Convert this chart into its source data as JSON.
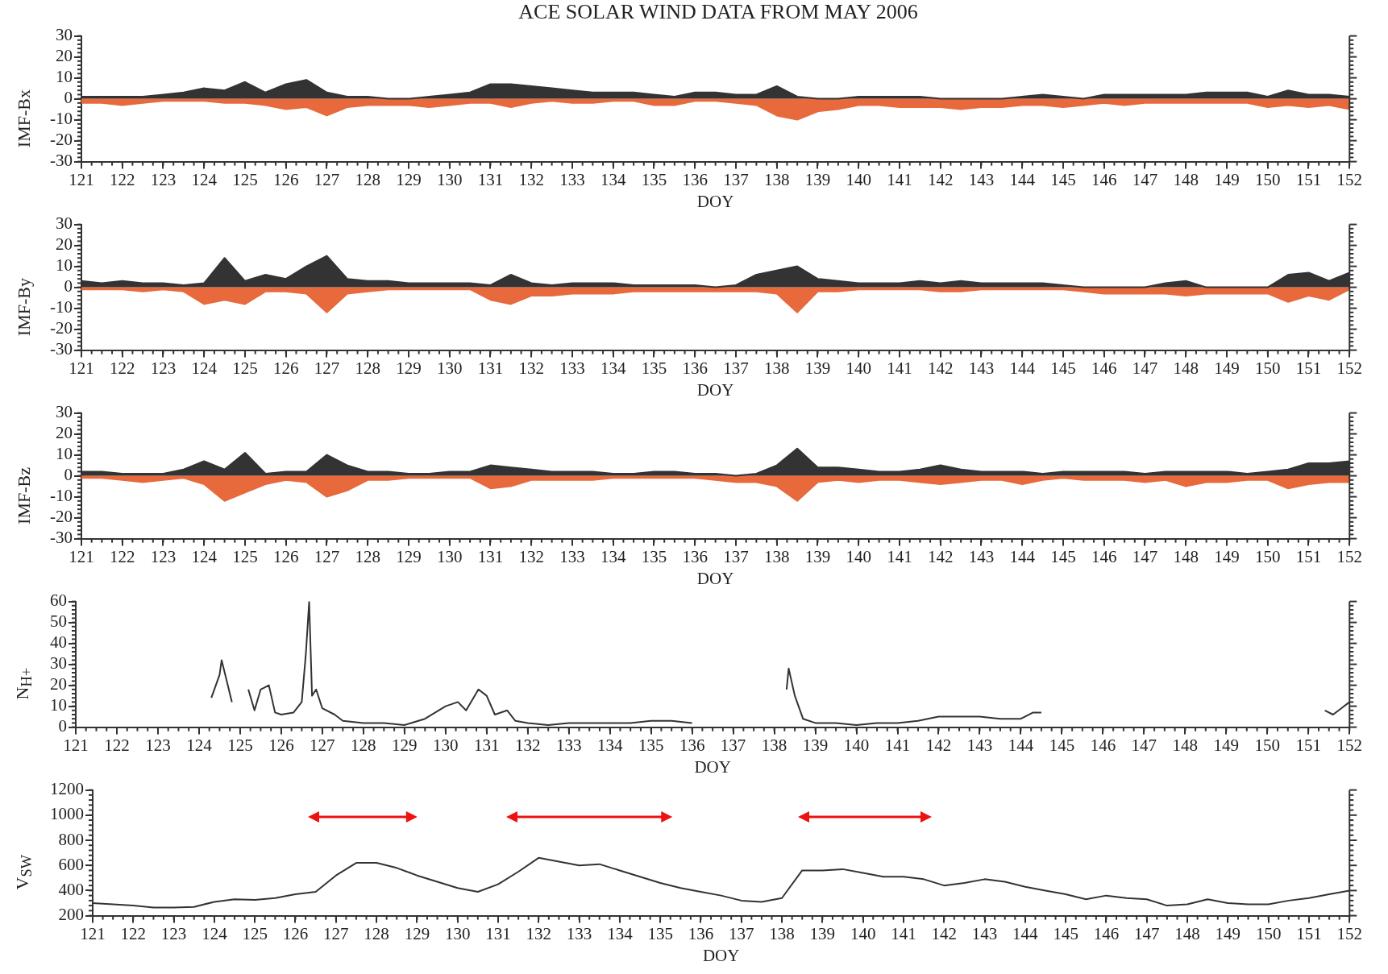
{
  "chart_data": [
    {
      "type": "area",
      "title": "ACE SOLAR WIND DATA FROM MAY 2006",
      "ylabel": "IMF-Bx",
      "xlabel": "DOY",
      "xlim": [
        121,
        152
      ],
      "xticks": [
        121,
        122,
        123,
        124,
        125,
        126,
        127,
        128,
        129,
        130,
        131,
        132,
        133,
        134,
        135,
        136,
        137,
        138,
        139,
        140,
        141,
        142,
        143,
        144,
        145,
        146,
        147,
        148,
        149,
        150,
        151,
        152
      ],
      "ylim": [
        -30,
        30
      ],
      "yticks": [
        -30,
        -20,
        -10,
        0,
        10,
        20,
        30
      ],
      "x": [
        121,
        121.5,
        122,
        122.5,
        123,
        123.5,
        124,
        124.5,
        125,
        125.5,
        126,
        126.5,
        127,
        127.5,
        128,
        128.5,
        129,
        129.5,
        130,
        130.5,
        131,
        131.5,
        132,
        132.5,
        133,
        133.5,
        134,
        134.5,
        135,
        135.5,
        136,
        136.5,
        137,
        137.5,
        138,
        138.5,
        139,
        139.5,
        140,
        140.5,
        141,
        141.5,
        142,
        142.5,
        143,
        143.5,
        144,
        144.5,
        145,
        145.5,
        146,
        146.5,
        147,
        147.5,
        148,
        148.5,
        149,
        149.5,
        150,
        150.5,
        151,
        151.5,
        152
      ],
      "series": [
        {
          "color": "#333333",
          "values": [
            1,
            1,
            1,
            1,
            2,
            3,
            5,
            4,
            8,
            3,
            7,
            9,
            3,
            1,
            1,
            0,
            0,
            1,
            2,
            3,
            7,
            7,
            6,
            5,
            4,
            3,
            3,
            3,
            2,
            1,
            3,
            3,
            2,
            2,
            6,
            1,
            0,
            0,
            1,
            1,
            1,
            1,
            0,
            0,
            0,
            0,
            1,
            2,
            1,
            0,
            2,
            2,
            2,
            2,
            2,
            3,
            3,
            3,
            1,
            4,
            2,
            2,
            1
          ]
        },
        {
          "color": "#e8693c",
          "values": [
            -2,
            -2,
            -3,
            -2,
            -1,
            -1,
            -1,
            -2,
            -2,
            -3,
            -5,
            -4,
            -8,
            -4,
            -3,
            -3,
            -3,
            -4,
            -3,
            -2,
            -2,
            -4,
            -2,
            -1,
            -2,
            -2,
            -1,
            -1,
            -3,
            -3,
            -1,
            -1,
            -2,
            -3,
            -8,
            -10,
            -6,
            -5,
            -3,
            -3,
            -4,
            -4,
            -4,
            -5,
            -4,
            -4,
            -3,
            -3,
            -4,
            -3,
            -2,
            -3,
            -2,
            -2,
            -2,
            -2,
            -2,
            -2,
            -4,
            -3,
            -4,
            -3,
            -5
          ]
        }
      ]
    },
    {
      "type": "area",
      "ylabel": "IMF-By",
      "xlabel": "DOY",
      "xlim": [
        121,
        152
      ],
      "xticks": [
        121,
        122,
        123,
        124,
        125,
        126,
        127,
        128,
        129,
        130,
        131,
        132,
        133,
        134,
        135,
        136,
        137,
        138,
        139,
        140,
        141,
        142,
        143,
        144,
        145,
        146,
        147,
        148,
        149,
        150,
        151,
        152
      ],
      "ylim": [
        -30,
        30
      ],
      "yticks": [
        -30,
        -20,
        -10,
        0,
        10,
        20,
        30
      ],
      "x": [
        121,
        121.5,
        122,
        122.5,
        123,
        123.5,
        124,
        124.5,
        125,
        125.5,
        126,
        126.5,
        127,
        127.5,
        128,
        128.5,
        129,
        129.5,
        130,
        130.5,
        131,
        131.5,
        132,
        132.5,
        133,
        133.5,
        134,
        134.5,
        135,
        135.5,
        136,
        136.5,
        137,
        137.5,
        138,
        138.5,
        139,
        139.5,
        140,
        140.5,
        141,
        141.5,
        142,
        142.5,
        143,
        143.5,
        144,
        144.5,
        145,
        145.5,
        146,
        146.5,
        147,
        147.5,
        148,
        148.5,
        149,
        149.5,
        150,
        150.5,
        151,
        151.5,
        152
      ],
      "series": [
        {
          "color": "#333333",
          "values": [
            3,
            2,
            3,
            2,
            2,
            1,
            2,
            14,
            3,
            6,
            4,
            10,
            15,
            4,
            3,
            3,
            2,
            2,
            2,
            2,
            1,
            6,
            2,
            1,
            2,
            2,
            2,
            1,
            1,
            1,
            1,
            0,
            1,
            6,
            8,
            10,
            4,
            3,
            2,
            2,
            2,
            3,
            2,
            3,
            2,
            2,
            2,
            2,
            1,
            0,
            0,
            0,
            0,
            2,
            3,
            0,
            0,
            0,
            0,
            6,
            7,
            3,
            7
          ]
        },
        {
          "color": "#e8693c",
          "values": [
            -1,
            -1,
            -1,
            -2,
            -1,
            -2,
            -8,
            -6,
            -8,
            -2,
            -2,
            -3,
            -12,
            -3,
            -2,
            -1,
            -1,
            -1,
            -1,
            -1,
            -6,
            -8,
            -4,
            -4,
            -3,
            -3,
            -3,
            -2,
            -2,
            -2,
            -2,
            -2,
            -2,
            -2,
            -3,
            -12,
            -2,
            -2,
            -1,
            -1,
            -1,
            -1,
            -2,
            -2,
            -1,
            -1,
            -1,
            -1,
            -1,
            -2,
            -3,
            -3,
            -3,
            -3,
            -4,
            -3,
            -3,
            -3,
            -3,
            -7,
            -4,
            -6,
            -1
          ]
        }
      ]
    },
    {
      "type": "area",
      "ylabel": "IMF-Bz",
      "xlabel": "DOY",
      "xlim": [
        121,
        152
      ],
      "xticks": [
        121,
        122,
        123,
        124,
        125,
        126,
        127,
        128,
        129,
        130,
        131,
        132,
        133,
        134,
        135,
        136,
        137,
        138,
        139,
        140,
        141,
        142,
        143,
        144,
        145,
        146,
        147,
        148,
        149,
        150,
        151,
        152
      ],
      "ylim": [
        -30,
        30
      ],
      "yticks": [
        -30,
        -20,
        -10,
        0,
        10,
        20,
        30
      ],
      "x": [
        121,
        121.5,
        122,
        122.5,
        123,
        123.5,
        124,
        124.5,
        125,
        125.5,
        126,
        126.5,
        127,
        127.5,
        128,
        128.5,
        129,
        129.5,
        130,
        130.5,
        131,
        131.5,
        132,
        132.5,
        133,
        133.5,
        134,
        134.5,
        135,
        135.5,
        136,
        136.5,
        137,
        137.5,
        138,
        138.5,
        139,
        139.5,
        140,
        140.5,
        141,
        141.5,
        142,
        142.5,
        143,
        143.5,
        144,
        144.5,
        145,
        145.5,
        146,
        146.5,
        147,
        147.5,
        148,
        148.5,
        149,
        149.5,
        150,
        150.5,
        151,
        151.5,
        152
      ],
      "series": [
        {
          "color": "#333333",
          "values": [
            2,
            2,
            1,
            1,
            1,
            3,
            7,
            3,
            11,
            1,
            2,
            2,
            10,
            5,
            2,
            2,
            1,
            1,
            2,
            2,
            5,
            4,
            3,
            2,
            2,
            2,
            1,
            1,
            2,
            2,
            1,
            1,
            0,
            1,
            5,
            13,
            4,
            4,
            3,
            2,
            2,
            3,
            5,
            3,
            2,
            2,
            2,
            1,
            2,
            2,
            2,
            2,
            1,
            2,
            2,
            2,
            2,
            1,
            2,
            3,
            6,
            6,
            7
          ]
        },
        {
          "color": "#e8693c",
          "values": [
            -1,
            -1,
            -2,
            -3,
            -2,
            -1,
            -4,
            -12,
            -8,
            -4,
            -2,
            -3,
            -10,
            -7,
            -2,
            -2,
            -1,
            -1,
            -1,
            -1,
            -6,
            -5,
            -2,
            -2,
            -2,
            -2,
            -1,
            -1,
            -1,
            -1,
            -1,
            -2,
            -3,
            -3,
            -5,
            -12,
            -3,
            -2,
            -3,
            -2,
            -2,
            -3,
            -4,
            -3,
            -2,
            -2,
            -4,
            -2,
            -1,
            -2,
            -2,
            -2,
            -3,
            -2,
            -5,
            -3,
            -3,
            -2,
            -2,
            -6,
            -4,
            -3,
            -3
          ]
        }
      ]
    },
    {
      "type": "line",
      "ylabel": "N$_{H+}$",
      "xlabel": "DOY",
      "xlim": [
        121,
        152
      ],
      "xticks": [
        121,
        122,
        123,
        124,
        125,
        126,
        127,
        128,
        129,
        130,
        131,
        132,
        133,
        134,
        135,
        136,
        137,
        138,
        139,
        140,
        141,
        142,
        143,
        144,
        145,
        146,
        147,
        148,
        149,
        150,
        151,
        152
      ],
      "ylim": [
        0,
        60
      ],
      "yticks": [
        0,
        10,
        20,
        30,
        40,
        50,
        60
      ],
      "x": [
        124.3,
        124.5,
        124.55,
        124.7,
        124.8,
        125,
        125.2,
        125.35,
        125.5,
        125.7,
        125.85,
        126,
        126.3,
        126.5,
        126.6,
        126.68,
        126.75,
        126.85,
        127,
        127.3,
        127.5,
        128,
        128.5,
        129,
        129.5,
        130,
        130.3,
        130.5,
        130.8,
        131,
        131.2,
        131.5,
        131.7,
        132,
        132.5,
        133,
        133.5,
        134,
        134.5,
        135,
        135.5,
        136,
        137,
        138.3,
        138.35,
        138.5,
        138.7,
        139,
        139.5,
        140,
        140.5,
        141,
        141.5,
        142,
        142.5,
        143,
        143.5,
        144,
        144.3,
        144.5,
        148,
        151.4,
        151.6,
        151.8,
        152
      ],
      "series": [
        {
          "color": "#333333",
          "values": [
            14,
            25,
            32,
            20,
            12,
            null,
            18,
            8,
            18,
            20,
            7,
            6,
            7,
            12,
            35,
            60,
            15,
            18,
            9,
            6,
            3,
            2,
            2,
            1,
            4,
            10,
            12,
            8,
            18,
            15,
            6,
            8,
            3,
            2,
            1,
            2,
            2,
            2,
            2,
            3,
            3,
            2,
            null,
            18,
            28,
            15,
            4,
            2,
            2,
            1,
            2,
            2,
            3,
            5,
            5,
            5,
            4,
            4,
            7,
            7,
            null,
            8,
            6,
            9,
            12
          ]
        }
      ]
    },
    {
      "type": "line",
      "ylabel": "V$_{SW}$",
      "xlabel": "DOY",
      "xlim": [
        121,
        152
      ],
      "xticks": [
        121,
        122,
        123,
        124,
        125,
        126,
        127,
        128,
        129,
        130,
        131,
        132,
        133,
        134,
        135,
        136,
        137,
        138,
        139,
        140,
        141,
        142,
        143,
        144,
        145,
        146,
        147,
        148,
        149,
        150,
        151,
        152
      ],
      "ylim": [
        200,
        1200
      ],
      "yticks": [
        200,
        400,
        600,
        800,
        1000,
        1200
      ],
      "x": [
        121,
        121.5,
        122,
        122.5,
        123,
        123.5,
        124,
        124.5,
        125,
        125.5,
        126,
        126.5,
        127,
        127.5,
        128,
        128.5,
        129,
        129.5,
        130,
        130.5,
        131,
        131.5,
        132,
        132.5,
        133,
        133.5,
        134,
        134.5,
        135,
        135.5,
        136,
        136.5,
        137,
        137.5,
        138,
        138.5,
        139,
        139.5,
        140,
        140.5,
        141,
        141.5,
        142,
        142.5,
        143,
        143.5,
        144,
        144.5,
        145,
        145.5,
        146,
        146.5,
        147,
        147.5,
        148,
        148.5,
        149,
        149.5,
        150,
        150.5,
        151,
        151.5,
        152
      ],
      "series": [
        {
          "color": "#333333",
          "values": [
            300,
            290,
            280,
            265,
            265,
            270,
            310,
            330,
            325,
            340,
            370,
            390,
            520,
            620,
            620,
            580,
            520,
            470,
            420,
            390,
            450,
            550,
            660,
            630,
            600,
            610,
            560,
            510,
            460,
            420,
            390,
            360,
            320,
            310,
            340,
            560,
            560,
            570,
            540,
            510,
            510,
            490,
            440,
            460,
            490,
            470,
            430,
            400,
            370,
            330,
            360,
            340,
            330,
            280,
            290,
            330,
            300,
            290,
            290,
            320,
            340,
            370,
            400
          ]
        }
      ]
    }
  ]
}
